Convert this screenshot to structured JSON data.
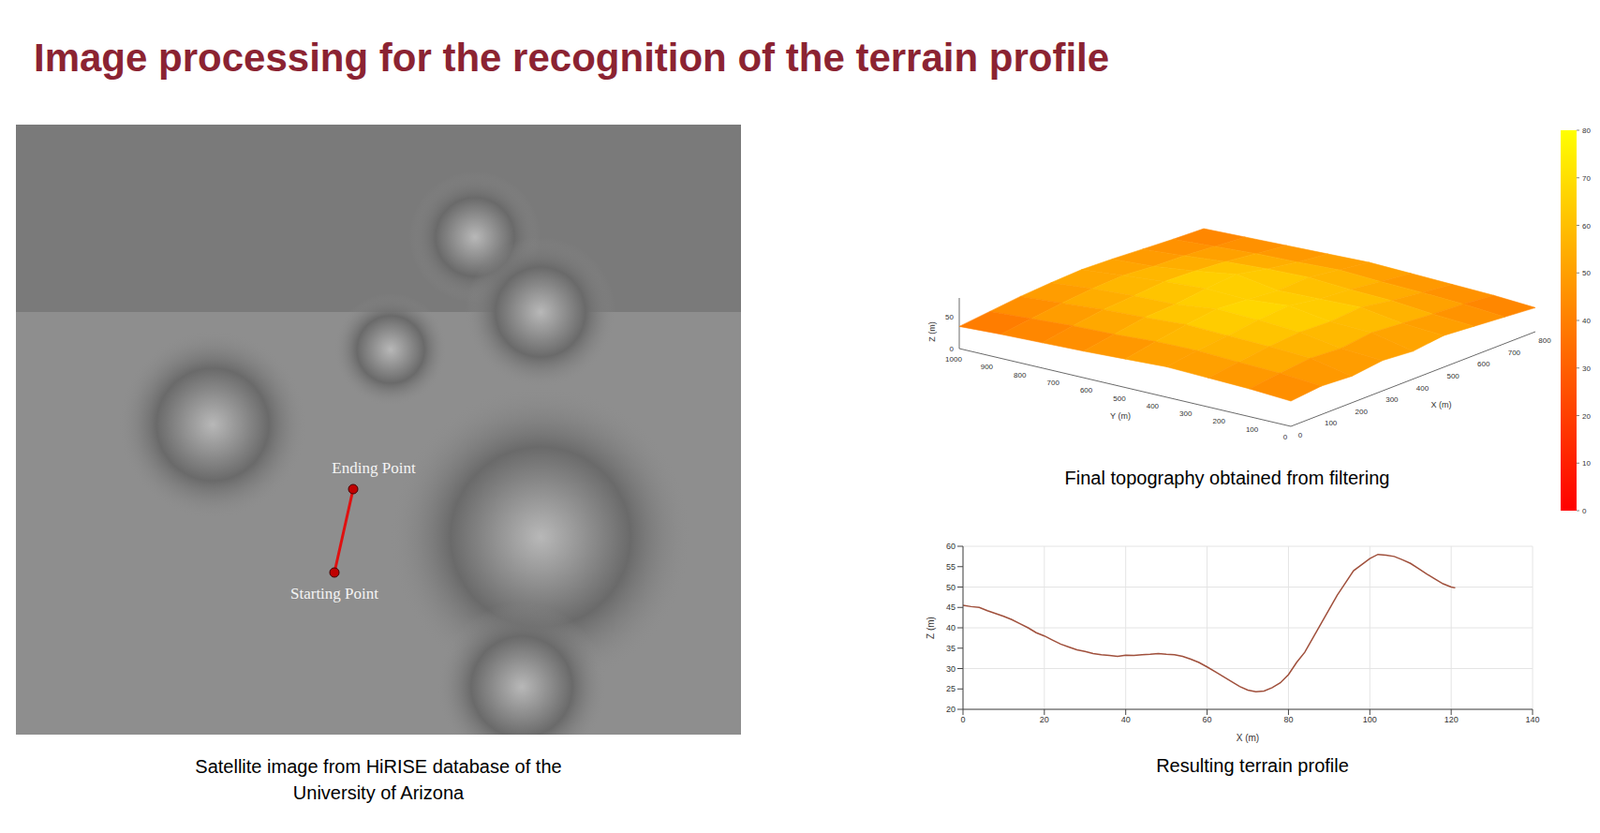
{
  "slide": {
    "title": "Image processing for the recognition of the terrain profile",
    "image": {
      "caption": [
        "Satellite image from HiRISE database of the",
        "University of Arizona"
      ],
      "annotations": [
        "Ending Point",
        "Starting Point"
      ]
    },
    "topography_caption": "Final topography obtained from filtering",
    "profile_caption": "Resulting terrain profile"
  },
  "chart_data": [
    {
      "type": "surface",
      "xlabel": "X (m)",
      "ylabel": "Y (m)",
      "zlabel": "Z (m)",
      "x": [
        0,
        100,
        200,
        300,
        400,
        500,
        600,
        700,
        800
      ],
      "y": [
        0,
        125,
        250,
        375,
        500,
        625,
        750,
        875,
        1000
      ],
      "z": [
        [
          40,
          45,
          42,
          48,
          44,
          50,
          46,
          42,
          38
        ],
        [
          44,
          50,
          55,
          52,
          58,
          54,
          50,
          47,
          42
        ],
        [
          46,
          52,
          58,
          62,
          60,
          64,
          56,
          50,
          44
        ],
        [
          48,
          55,
          60,
          66,
          70,
          62,
          58,
          52,
          46
        ],
        [
          45,
          54,
          62,
          68,
          64,
          60,
          62,
          55,
          48
        ],
        [
          42,
          50,
          58,
          60,
          66,
          70,
          60,
          52,
          46
        ],
        [
          40,
          48,
          55,
          58,
          62,
          60,
          56,
          50,
          44
        ],
        [
          38,
          44,
          50,
          54,
          56,
          52,
          50,
          46,
          42
        ],
        [
          35,
          40,
          45,
          48,
          50,
          48,
          45,
          42,
          40
        ]
      ],
      "xlim": [
        0,
        800
      ],
      "ylim": [
        0,
        1000
      ],
      "zlim": [
        0,
        80
      ],
      "xticks": [
        0,
        100,
        200,
        300,
        400,
        500,
        600,
        700,
        800
      ],
      "yticks": [
        0,
        100,
        200,
        300,
        400,
        500,
        600,
        700,
        800,
        900,
        1000
      ],
      "zticks": [
        0,
        50
      ],
      "colorbar": {
        "range": [
          0,
          80
        ],
        "ticks": [
          0,
          10,
          20,
          30,
          40,
          50,
          60,
          70,
          80
        ]
      }
    },
    {
      "type": "line",
      "xlabel": "X (m)",
      "ylabel": "Z (m)",
      "color": "#a0503c",
      "grid": true,
      "xlim": [
        0,
        140
      ],
      "ylim": [
        20,
        60
      ],
      "xticks": [
        0,
        20,
        40,
        60,
        80,
        100,
        120,
        140
      ],
      "yticks": [
        20,
        25,
        30,
        35,
        40,
        45,
        50,
        55,
        60
      ],
      "x": [
        0,
        2,
        4,
        6,
        8,
        10,
        12,
        14,
        16,
        18,
        20,
        22,
        24,
        26,
        28,
        30,
        32,
        34,
        36,
        38,
        40,
        42,
        44,
        46,
        48,
        50,
        52,
        54,
        56,
        58,
        60,
        62,
        64,
        66,
        68,
        70,
        72,
        74,
        76,
        78,
        80,
        82,
        84,
        86,
        88,
        90,
        92,
        94,
        96,
        98,
        100,
        102,
        104,
        106,
        108,
        110,
        112,
        114,
        116,
        118,
        120,
        121
      ],
      "values": [
        45.5,
        45.2,
        45,
        44.2,
        43.5,
        42.8,
        42,
        41,
        40,
        38.8,
        38,
        37,
        36,
        35.3,
        34.6,
        34.2,
        33.7,
        33.4,
        33.2,
        33,
        33.3,
        33.2,
        33.4,
        33.5,
        33.7,
        33.5,
        33.4,
        33,
        32.3,
        31.5,
        30.4,
        29.2,
        28,
        26.8,
        25.6,
        24.7,
        24.3,
        24.5,
        25.3,
        26.5,
        28.5,
        31.5,
        34,
        37.5,
        41,
        44.5,
        48,
        51,
        54,
        55.5,
        57,
        58,
        57.8,
        57.5,
        56.7,
        55.8,
        54.5,
        53.2,
        52,
        50.8,
        50,
        49.8
      ]
    }
  ]
}
